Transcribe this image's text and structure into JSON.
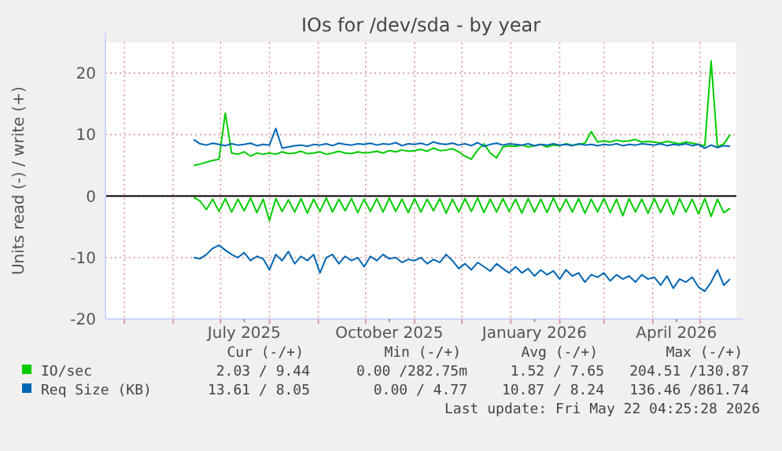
{
  "chart_data": {
    "type": "line",
    "title": "IOs for /dev/sda - by year",
    "ylabel": "Units read (-) / write (+)",
    "x": [
      "2025-06-14",
      "2025-06-18",
      "2025-06-22",
      "2025-06-26",
      "2025-06-30",
      "2025-07-04",
      "2025-07-08",
      "2025-07-12",
      "2025-07-16",
      "2025-07-20",
      "2025-07-24",
      "2025-07-28",
      "2025-08-01",
      "2025-08-05",
      "2025-08-09",
      "2025-08-13",
      "2025-08-17",
      "2025-08-21",
      "2025-08-25",
      "2025-08-29",
      "2025-09-02",
      "2025-09-06",
      "2025-09-10",
      "2025-09-14",
      "2025-09-18",
      "2025-09-22",
      "2025-09-26",
      "2025-09-30",
      "2025-10-04",
      "2025-10-08",
      "2025-10-12",
      "2025-10-16",
      "2025-10-20",
      "2025-10-24",
      "2025-10-28",
      "2025-11-01",
      "2025-11-05",
      "2025-11-09",
      "2025-11-13",
      "2025-11-17",
      "2025-11-21",
      "2025-11-25",
      "2025-11-29",
      "2025-12-03",
      "2025-12-07",
      "2025-12-11",
      "2025-12-15",
      "2025-12-19",
      "2025-12-23",
      "2025-12-27",
      "2025-12-31",
      "2026-01-04",
      "2026-01-08",
      "2026-01-12",
      "2026-01-16",
      "2026-01-20",
      "2026-01-24",
      "2026-01-28",
      "2026-02-01",
      "2026-02-05",
      "2026-02-09",
      "2026-02-13",
      "2026-02-17",
      "2026-02-21",
      "2026-02-25",
      "2026-03-01",
      "2026-03-05",
      "2026-03-09",
      "2026-03-13",
      "2026-03-17",
      "2026-03-21",
      "2026-03-25",
      "2026-03-29",
      "2026-04-02",
      "2026-04-06",
      "2026-04-10",
      "2026-04-14",
      "2026-04-18",
      "2026-04-22",
      "2026-04-26",
      "2026-04-30",
      "2026-05-04",
      "2026-05-08",
      "2026-05-12",
      "2026-05-16",
      "2026-05-20"
    ],
    "series": [
      {
        "color": "#00cc00",
        "values": [
          -0.2,
          -0.8,
          -2.2,
          -0.5,
          -2.5,
          -0.4,
          -2.6,
          -0.5,
          -2.4,
          -0.3,
          -2.7,
          -0.5,
          -4,
          -0.4,
          -2.5,
          -0.6,
          -2.6,
          -0.4,
          -2.8,
          -0.5,
          -2.5,
          -0.3,
          -2.6,
          -0.5,
          -2.4,
          -0.4,
          -2.7,
          -0.5,
          -2.5,
          -0.4,
          -2.6,
          -0.3,
          -2.5,
          -0.5,
          -2.7,
          -0.4,
          -2.6,
          -0.5,
          -2.4,
          -0.4,
          -2.8,
          -0.5,
          -2.6,
          -0.4,
          -2.5,
          -0.3,
          -2.7,
          -0.5,
          -2.6,
          -0.4,
          -2.5,
          -0.5,
          -2.8,
          -0.4,
          -2.6,
          -0.5,
          -2.7,
          -0.3,
          -2.5,
          -0.5,
          -2.6,
          -0.4,
          -2.8,
          -0.5,
          -2.6,
          -0.4,
          -2.7,
          -0.5,
          -3.2,
          -0.4,
          -2.6,
          -0.5,
          -2.8,
          -0.4,
          -2.7,
          -0.5,
          -3,
          -0.4,
          -2.6,
          -0.5,
          -2.9,
          -0.4,
          -3.3,
          -0.5,
          -2.7,
          -2
        ]
      },
      {
        "color": "#0066b3",
        "values": [
          -10,
          -10.2,
          -9.5,
          -8.5,
          -8,
          -8.8,
          -9.5,
          -10,
          -9.2,
          -10.5,
          -9.8,
          -10.2,
          -12,
          -9.5,
          -10.5,
          -9,
          -11,
          -9.8,
          -10.5,
          -9.5,
          -12.5,
          -10,
          -9.5,
          -11,
          -9.8,
          -10.5,
          -10,
          -11.5,
          -9.8,
          -10.5,
          -9.5,
          -10.2,
          -10,
          -10.8,
          -10.3,
          -10.5,
          -10,
          -11,
          -10.3,
          -10.8,
          -9.5,
          -10.5,
          -11.8,
          -11,
          -12,
          -10.8,
          -11.5,
          -12.2,
          -11,
          -11.8,
          -12.5,
          -11.5,
          -12.5,
          -11.8,
          -13,
          -12,
          -12.8,
          -12.2,
          -13.5,
          -12,
          -13,
          -12.5,
          -14,
          -12.8,
          -13.2,
          -12.5,
          -13.8,
          -12.8,
          -13.5,
          -13,
          -14,
          -12.8,
          -13.5,
          -13.2,
          -14.5,
          -13,
          -15,
          -13.5,
          -14,
          -13.2,
          -14.8,
          -15.5,
          -14,
          -12,
          -14.5,
          -13.5
        ]
      },
      {
        "name": "IO/sec",
        "color": "#00cc00",
        "values": [
          5,
          5.2,
          5.5,
          5.8,
          6,
          13.5,
          7,
          6.8,
          7.2,
          6.5,
          7,
          6.8,
          7,
          6.8,
          7.2,
          6.9,
          7,
          7.3,
          6.9,
          7,
          7.2,
          6.8,
          7,
          7.3,
          7,
          6.9,
          7.2,
          7,
          7.1,
          7.3,
          7,
          7.4,
          7.2,
          7.5,
          7.3,
          7.4,
          7.6,
          7.3,
          7.8,
          7.4,
          7.5,
          7.7,
          7.2,
          6.5,
          6,
          7.5,
          8.5,
          7,
          6.2,
          8,
          8.2,
          8.1,
          8.3,
          8,
          8.2,
          8.4,
          8,
          8.3,
          8.2,
          8.5,
          8.3,
          8.4,
          8.6,
          10.5,
          8.8,
          9,
          8.8,
          9.1,
          8.9,
          9,
          9.2,
          8.8,
          8.9,
          8.8,
          8.6,
          8.9,
          8.7,
          8.5,
          8.8,
          8.6,
          8.4,
          8.2,
          22,
          8,
          8.5,
          10
        ]
      },
      {
        "name": "Req Size (KB)",
        "color": "#0066b3",
        "values": [
          9.2,
          8.5,
          8.3,
          8.6,
          8.4,
          8.2,
          8.5,
          8.3,
          8.4,
          8.6,
          8.2,
          8.4,
          8.3,
          11,
          7.8,
          8,
          8.2,
          8.3,
          8.1,
          8.4,
          8.3,
          8.5,
          8.2,
          8.6,
          8.4,
          8.3,
          8.5,
          8.4,
          8.6,
          8.3,
          8.5,
          8.4,
          8.7,
          8.2,
          8.5,
          8.4,
          8.6,
          8.3,
          8.8,
          8.5,
          8.4,
          8.6,
          8.3,
          8.5,
          8.2,
          8.7,
          8.1,
          8.4,
          8.6,
          8.3,
          8.5,
          8.4,
          8.3,
          8.5,
          8.2,
          8.4,
          8.3,
          8.5,
          8.3,
          8.4,
          8.2,
          8.5,
          8.3,
          8.4,
          8.2,
          8.4,
          8.3,
          8.5,
          8.2,
          8.4,
          8.3,
          8.5,
          8.4,
          8.3,
          8.5,
          8.2,
          8.4,
          8.3,
          8.5,
          8.2,
          8.4,
          7.8,
          8.3,
          7.9,
          8.2,
          8.1
        ]
      }
    ],
    "xlim": [
      "2025-04-19",
      "2026-05-24"
    ],
    "xticks": [
      {
        "value": "2025-05-01",
        "label": null
      },
      {
        "value": "2025-06-01",
        "label": null
      },
      {
        "value": "2025-07-01",
        "label": null
      },
      {
        "value": "2025-07-16",
        "label": "July 2025"
      },
      {
        "value": "2025-08-01",
        "label": null
      },
      {
        "value": "2025-09-01",
        "label": null
      },
      {
        "value": "2025-10-01",
        "label": null
      },
      {
        "value": "2025-10-16",
        "label": "October 2025"
      },
      {
        "value": "2025-11-01",
        "label": null
      },
      {
        "value": "2025-12-01",
        "label": null
      },
      {
        "value": "2026-01-01",
        "label": null
      },
      {
        "value": "2026-01-16",
        "label": "January 2026"
      },
      {
        "value": "2026-02-01",
        "label": null
      },
      {
        "value": "2026-03-01",
        "label": null
      },
      {
        "value": "2026-04-01",
        "label": null
      },
      {
        "value": "2026-04-16",
        "label": "April 2026"
      },
      {
        "value": "2026-05-01",
        "label": null
      }
    ],
    "ylim": [
      -20,
      25
    ],
    "yticks": [
      -20,
      -10,
      0,
      10,
      20
    ],
    "grid": true,
    "legend": "bottom",
    "line_style": "solid",
    "ref_lines": [
      {
        "axis": "y",
        "value": 0,
        "color": "#000000"
      }
    ],
    "annotations": [
      "Cur (-/+)",
      "Min (-/+)",
      "Avg (-/+)",
      "Max (-/+)",
      "2.03 / 9.44",
      "0.00 /282.75m",
      "1.52 / 7.65",
      "204.51 /130.87",
      "13.61 / 8.05",
      "0.00 / 4.77",
      "10.87 / 8.24",
      "136.46 /861.74",
      "Last update: Fri May 22 04:25:28 2026"
    ]
  }
}
